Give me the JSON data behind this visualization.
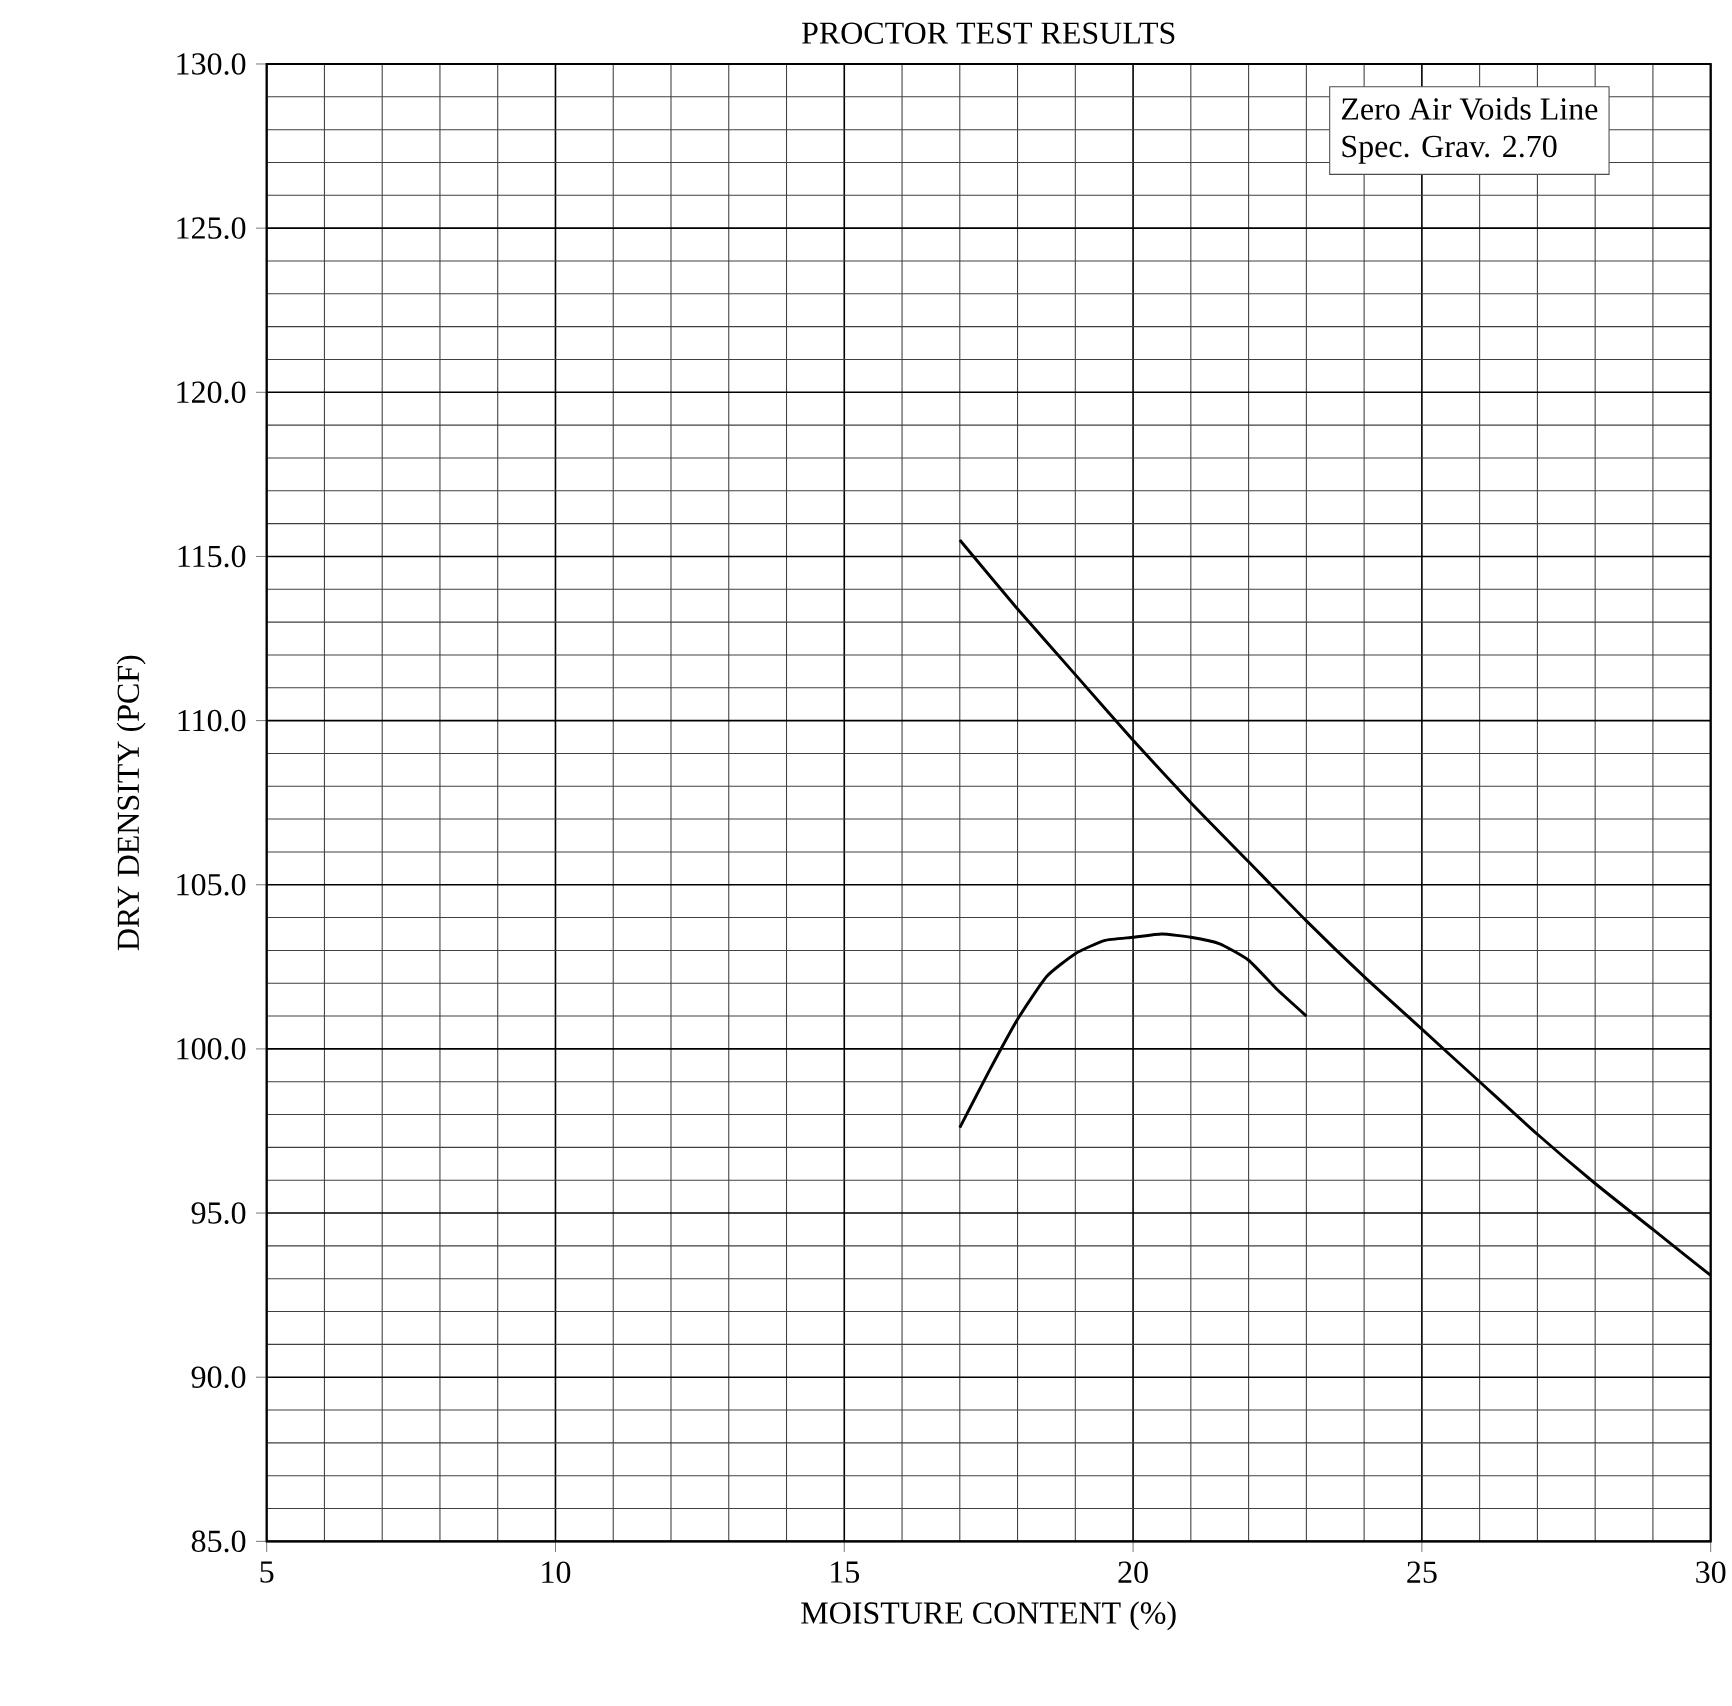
{
  "chart_data": {
    "type": "line",
    "title": "PROCTOR TEST RESULTS",
    "xlabel": "MOISTURE CONTENT (%)",
    "ylabel": "DRY DENSITY (PCF)",
    "xlim": [
      5,
      30
    ],
    "xticks": [
      5,
      10,
      15,
      20,
      25,
      30
    ],
    "ylim": [
      85,
      130
    ],
    "yticks": [
      {
        "value": 85,
        "label": "85.0"
      },
      {
        "value": 90,
        "label": "90.0"
      },
      {
        "value": 95,
        "label": "95.0"
      },
      {
        "value": 100,
        "label": "100.0"
      },
      {
        "value": 105,
        "label": "105.0"
      },
      {
        "value": 110,
        "label": "110.0"
      },
      {
        "value": 115,
        "label": "115.0"
      },
      {
        "value": 120,
        "label": "120.0"
      },
      {
        "value": 125,
        "label": "125.0"
      },
      {
        "value": 130,
        "label": "130.0"
      }
    ],
    "grid": true,
    "marker": "none",
    "line_style": "solid",
    "annotations": [
      "Zero Air Voids Line",
      "Spec. Grav. 2.70"
    ],
    "series": [
      {
        "color": "#000000",
        "x": [
          17,
          18,
          19,
          20,
          21,
          22,
          23,
          24,
          25,
          26,
          27,
          28,
          29,
          30
        ],
        "values": [
          115.5,
          113.4,
          111.4,
          109.4,
          107.5,
          105.7,
          103.9,
          102.2,
          100.6,
          99.0,
          97.4,
          95.9,
          94.5,
          93.1
        ]
      },
      {
        "color": "#000000",
        "x": [
          17,
          17.5,
          18,
          18.5,
          19,
          19.5,
          20,
          20.5,
          21,
          21.5,
          22,
          22.5,
          23
        ],
        "values": [
          97.6,
          99.3,
          100.9,
          102.2,
          102.9,
          103.3,
          103.4,
          103.5,
          103.4,
          103.2,
          102.7,
          101.8,
          101.0
        ]
      }
    ]
  }
}
